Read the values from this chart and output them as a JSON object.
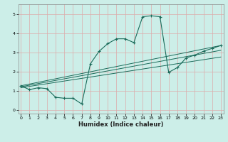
{
  "title": "",
  "xlabel": "Humidex (Indice chaleur)",
  "bg_color": "#cceee8",
  "grid_color": "#aaddcc",
  "line_color": "#1a6b5a",
  "x_ticks": [
    0,
    1,
    2,
    3,
    4,
    5,
    6,
    7,
    8,
    9,
    10,
    11,
    12,
    13,
    14,
    15,
    16,
    17,
    18,
    19,
    20,
    21,
    22,
    23
  ],
  "y_ticks": [
    0,
    1,
    2,
    3,
    4,
    5
  ],
  "xlim": [
    -0.3,
    23.3
  ],
  "ylim": [
    -0.2,
    5.5
  ],
  "series_main": {
    "x": [
      0,
      1,
      2,
      3,
      4,
      5,
      6,
      7,
      8,
      9,
      10,
      11,
      12,
      13,
      14,
      15,
      16,
      17,
      18,
      19,
      20,
      21,
      22,
      23
    ],
    "y": [
      1.25,
      1.05,
      1.15,
      1.1,
      0.65,
      0.6,
      0.6,
      0.3,
      2.4,
      3.05,
      3.45,
      3.7,
      3.7,
      3.5,
      4.85,
      4.9,
      4.85,
      1.95,
      2.2,
      2.7,
      2.85,
      3.05,
      3.2,
      3.35
    ]
  },
  "series_lines": [
    {
      "x": [
        0,
        23
      ],
      "y": [
        1.25,
        3.35
      ]
    },
    {
      "x": [
        0,
        23
      ],
      "y": [
        1.2,
        3.1
      ]
    },
    {
      "x": [
        0,
        23
      ],
      "y": [
        1.15,
        2.75
      ]
    }
  ]
}
